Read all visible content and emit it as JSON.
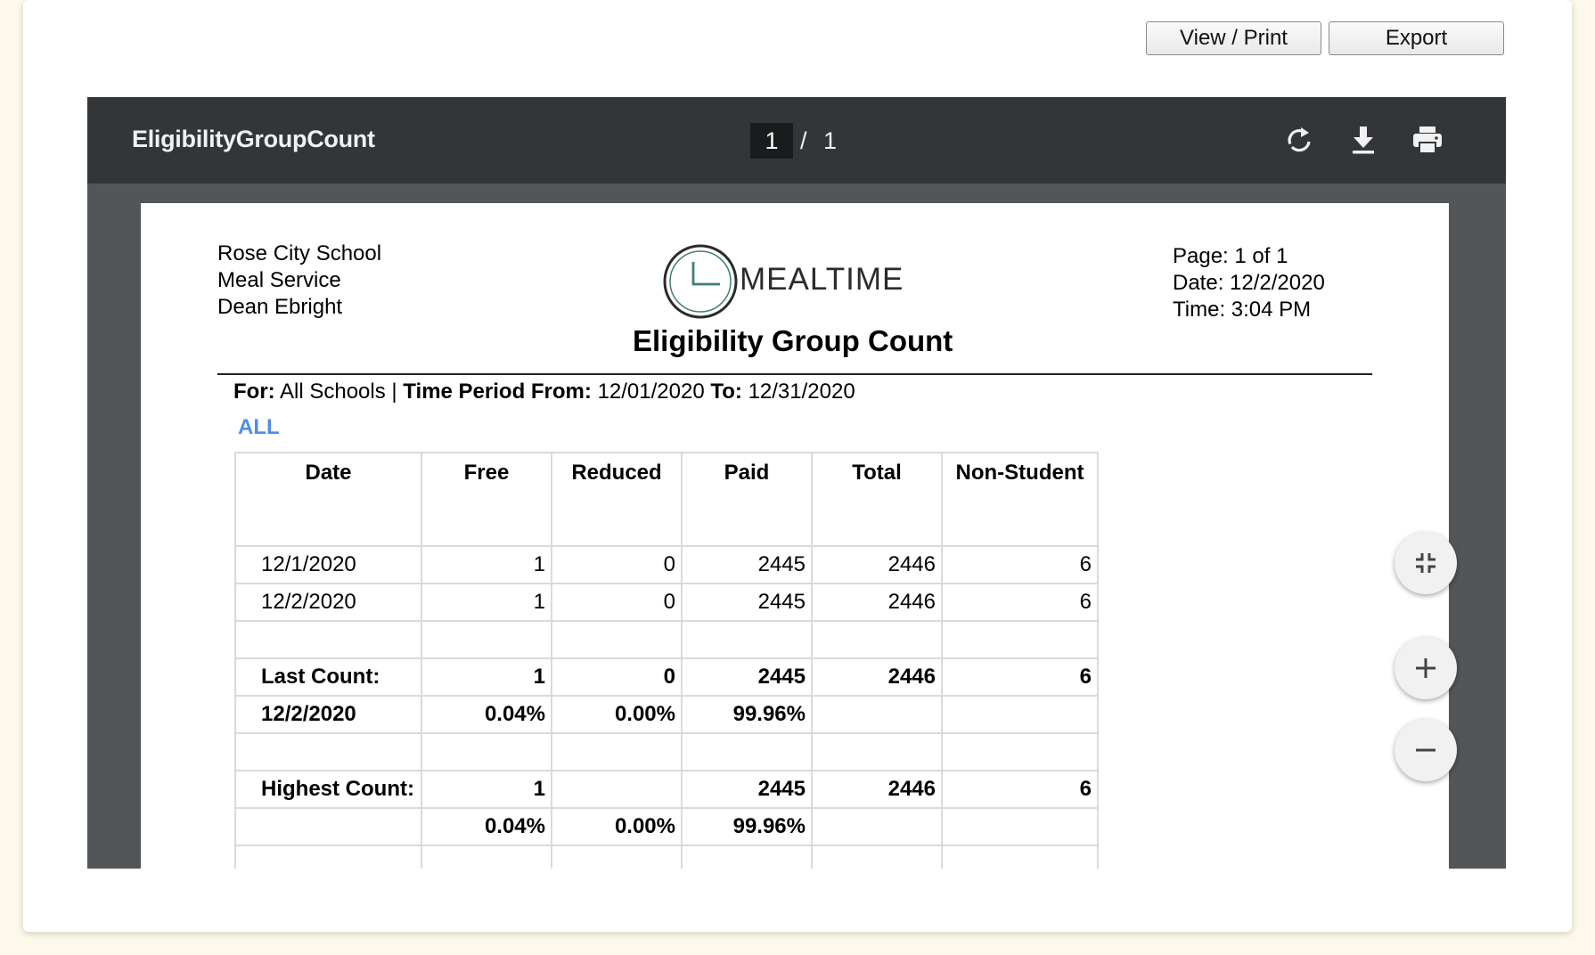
{
  "actions": {
    "view_print": "View / Print",
    "export": "Export"
  },
  "viewer": {
    "title": "EligibilityGroupCount",
    "current_page": "1",
    "page_separator": "/",
    "total_pages": "1",
    "icons": {
      "rotate": "rotate-icon",
      "download": "download-icon",
      "print": "print-icon"
    }
  },
  "report": {
    "org_line1": "Rose City School",
    "org_line2": "Meal Service",
    "org_line3": "Dean Ebright",
    "logo_text": "MEALTIME",
    "title": "Eligibility Group Count",
    "page_info": "Page: 1 of  1",
    "date_info": "Date: 12/2/2020",
    "time_info": "Time: 3:04 PM",
    "filter": {
      "for_label": "For:",
      "for_value": "All Schools |",
      "period_label": "Time Period From:",
      "from_value": "12/01/2020",
      "to_label": "To:",
      "to_value": "12/31/2020"
    },
    "group_label": "ALL",
    "columns": [
      "Date",
      "Free",
      "Reduced",
      "Paid",
      "Total",
      "Non-Student"
    ],
    "rows": [
      [
        "12/1/2020",
        "1",
        "0",
        "2445",
        "2446",
        "6"
      ],
      [
        "12/2/2020",
        "1",
        "0",
        "2445",
        "2446",
        "6"
      ],
      [
        "",
        "",
        "",
        "",
        "",
        ""
      ],
      [
        "Last Count:",
        "1",
        "0",
        "2445",
        "2446",
        "6"
      ],
      [
        "12/2/2020",
        "0.04%",
        "0.00%",
        "99.96%",
        "",
        ""
      ],
      [
        "",
        "",
        "",
        "",
        "",
        ""
      ],
      [
        "Highest Count:",
        "1",
        "",
        "2445",
        "2446",
        "6"
      ],
      [
        "",
        "0.04%",
        "0.00%",
        "99.96%",
        "",
        ""
      ],
      [
        "",
        "",
        "",
        "",
        "",
        ""
      ]
    ],
    "bold_rows": [
      3,
      4,
      6,
      7
    ]
  },
  "zoom": {
    "fit": "fit-to-page-icon",
    "in": "zoom-in-icon",
    "out": "zoom-out-icon"
  },
  "colors": {
    "toolbar": "#323639",
    "viewer_bg": "#525659",
    "accent": "#4f8ee6",
    "page_bg": "#fdf9ea"
  }
}
